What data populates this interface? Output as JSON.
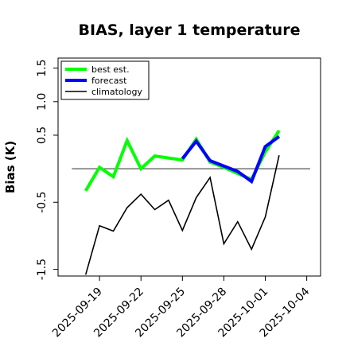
{
  "chart_data": {
    "type": "line",
    "title": "BIAS, layer 1 temperature",
    "xlabel": "",
    "ylabel": "Bias (K)",
    "xlim": [
      "2025-09-16",
      "2025-10-05"
    ],
    "ylim": [
      -1.6,
      1.65
    ],
    "yticks": [
      {
        "value": -1.5,
        "label": "-1.5"
      },
      {
        "value": -0.5,
        "label": "-0.5"
      },
      {
        "value": 0.5,
        "label": "0.5"
      },
      {
        "value": 1.0,
        "label": "1.0"
      },
      {
        "value": 1.5,
        "label": "1.5"
      }
    ],
    "xticks": [
      {
        "value": "2025-09-19",
        "label": "2025-09-19"
      },
      {
        "value": "2025-09-22",
        "label": "2025-09-22"
      },
      {
        "value": "2025-09-25",
        "label": "2025-09-25",
        "color": "#228B22"
      },
      {
        "value": "2025-09-28",
        "label": "2025-09-28"
      },
      {
        "value": "2025-10-01",
        "label": "2025-10-01"
      },
      {
        "value": "2025-10-04",
        "label": "2025-10-04"
      }
    ],
    "reference_line": 0,
    "grid": false,
    "legend_position": "top-left",
    "series": [
      {
        "name": "best est.",
        "color": "#00ff00",
        "x": [
          "2025-09-18",
          "2025-09-19",
          "2025-09-20",
          "2025-09-21",
          "2025-09-22",
          "2025-09-23",
          "2025-09-24",
          "2025-09-25",
          "2025-09-26",
          "2025-09-27",
          "2025-09-28",
          "2025-09-29",
          "2025-09-30",
          "2025-10-01",
          "2025-10-02"
        ],
        "y": [
          -0.33,
          0.02,
          -0.12,
          0.42,
          0.0,
          0.19,
          0.16,
          0.13,
          0.44,
          0.1,
          0.02,
          -0.07,
          -0.16,
          0.25,
          0.57
        ]
      },
      {
        "name": "forecast",
        "color": "#0000ff",
        "x": [
          "2025-09-25",
          "2025-09-26",
          "2025-09-27",
          "2025-09-28",
          "2025-09-29",
          "2025-09-30",
          "2025-10-01",
          "2025-10-02"
        ],
        "y": [
          0.15,
          0.41,
          0.12,
          0.04,
          -0.04,
          -0.19,
          0.33,
          0.48
        ]
      },
      {
        "name": "climatology",
        "color": "#000000",
        "x": [
          "2025-09-18",
          "2025-09-19",
          "2025-09-20",
          "2025-09-21",
          "2025-09-22",
          "2025-09-23",
          "2025-09-24",
          "2025-09-25",
          "2025-09-26",
          "2025-09-27",
          "2025-09-28",
          "2025-09-29",
          "2025-09-30",
          "2025-10-01",
          "2025-10-02"
        ],
        "y": [
          -1.58,
          -0.85,
          -0.93,
          -0.58,
          -0.38,
          -0.61,
          -0.47,
          -0.92,
          -0.43,
          -0.13,
          -1.12,
          -0.79,
          -1.2,
          -0.72,
          0.2
        ]
      }
    ]
  }
}
